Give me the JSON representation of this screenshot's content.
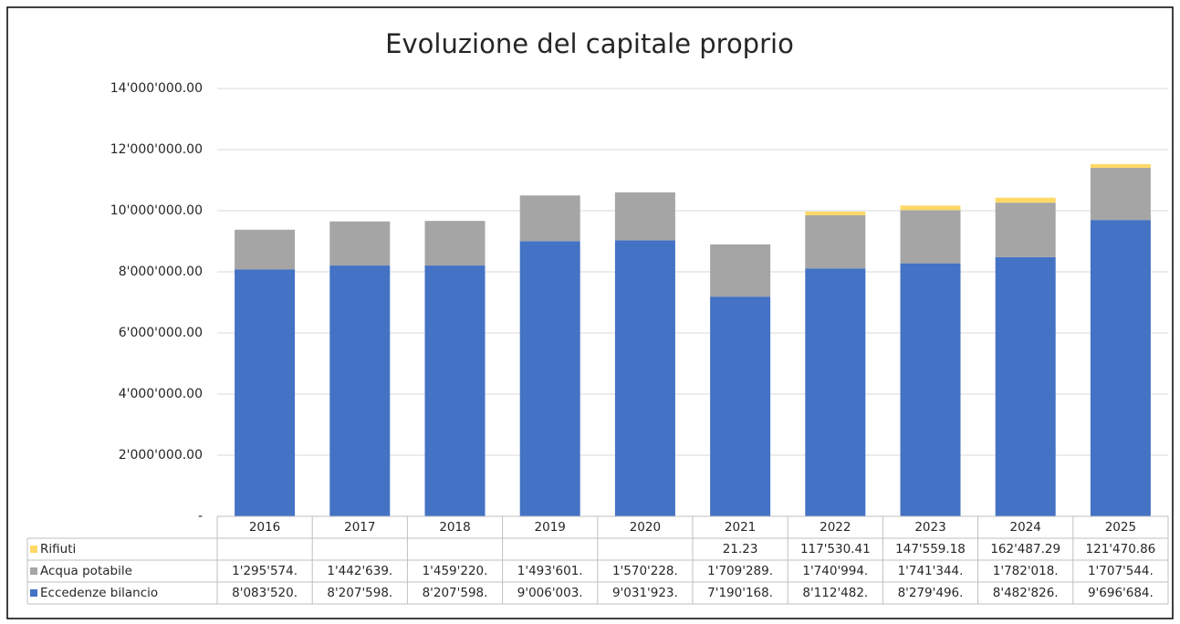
{
  "chart_data": {
    "type": "stacked_bar",
    "title": "Evoluzione del capitale proprio",
    "categories": [
      "2016",
      "2017",
      "2018",
      "2019",
      "2020",
      "2021",
      "2022",
      "2023",
      "2024",
      "2025"
    ],
    "series": [
      {
        "name": "Rifiuti",
        "color": "#ffd966",
        "values": [
          null,
          null,
          null,
          null,
          null,
          21.23,
          117530.41,
          147559.18,
          162487.29,
          121470.86
        ],
        "value_labels": [
          null,
          null,
          null,
          null,
          null,
          "21.23",
          "117'530.41",
          "147'559.18",
          "162'487.29",
          "121'470.86"
        ]
      },
      {
        "name": "Acqua potabile",
        "color": "#a5a5a5",
        "values": [
          1295574,
          1442639,
          1459220,
          1493601,
          1570228,
          1709289,
          1740994,
          1741344,
          1782018,
          1707544
        ],
        "value_labels": [
          "1'295'574.",
          "1'442'639.",
          "1'459'220.",
          "1'493'601.",
          "1'570'228.",
          "1'709'289.",
          "1'740'994.",
          "1'741'344.",
          "1'782'018.",
          "1'707'544."
        ]
      },
      {
        "name": "Eccedenze bilancio",
        "color": "#4472c4",
        "values": [
          8083520,
          8207598,
          8207598,
          9006003,
          9031923,
          7190168,
          8112482,
          8279496,
          8482826,
          9696684
        ],
        "value_labels": [
          "8'083'520.",
          "8'207'598.",
          "8'207'598.",
          "9'006'003.",
          "9'031'923.",
          "7'190'168.",
          "8'112'482.",
          "8'279'496.",
          "8'482'826.",
          "9'696'684."
        ]
      }
    ],
    "ylim": [
      0,
      14000000
    ],
    "yticks": [
      {
        "value": 0,
        "label": "-"
      },
      {
        "value": 2000000,
        "label": "2'000'000.00"
      },
      {
        "value": 4000000,
        "label": "4'000'000.00"
      },
      {
        "value": 6000000,
        "label": "6'000'000.00"
      },
      {
        "value": 8000000,
        "label": "8'000'000.00"
      },
      {
        "value": 10000000,
        "label": "10'000'000.00"
      },
      {
        "value": 12000000,
        "label": "12'000'000.00"
      },
      {
        "value": 14000000,
        "label": "14'000'000.00"
      }
    ],
    "grid": true
  }
}
